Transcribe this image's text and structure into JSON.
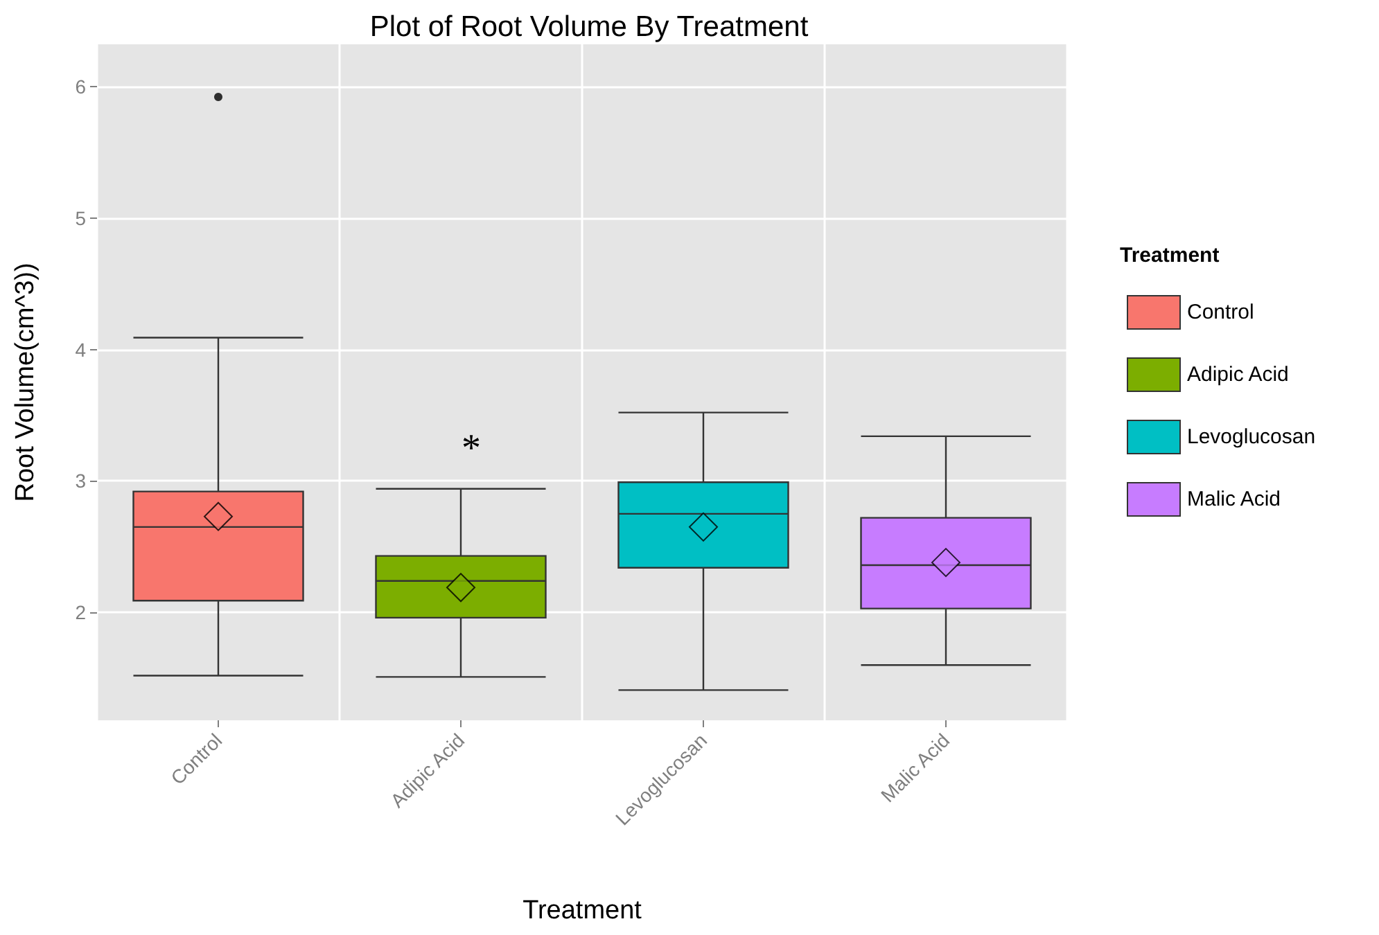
{
  "chart_data": {
    "type": "box",
    "title": "Plot of Root Volume By Treatment",
    "xlabel": "Treatment",
    "ylabel": "Root Volume(cm^3))",
    "legend_title": "Treatment",
    "legend": "right",
    "grid": true,
    "marker": "diamond",
    "categories": [
      "Control",
      "Adipic Acid",
      "Levoglucosan",
      "Malic Acid"
    ],
    "series": [
      {
        "name": "Control",
        "color": "#f8766d",
        "boxes": [
          {
            "low": 1.52,
            "q1": 2.09,
            "median": 2.65,
            "q3": 2.92,
            "high": 4.09,
            "mean": 2.73,
            "outliers": [
              5.92
            ]
          },
          null,
          null,
          null
        ]
      },
      {
        "name": "Adipic Acid",
        "color": "#7cae00",
        "boxes": [
          null,
          {
            "low": 1.51,
            "q1": 1.96,
            "median": 2.24,
            "q3": 2.43,
            "high": 2.94,
            "mean": 2.19
          },
          null,
          null
        ]
      },
      {
        "name": "Levoglucosan",
        "color": "#00bfc4",
        "boxes": [
          null,
          null,
          {
            "low": 1.41,
            "q1": 2.34,
            "median": 2.75,
            "q3": 2.99,
            "high": 3.52,
            "mean": 2.65
          },
          null
        ]
      },
      {
        "name": "Malic Acid",
        "color": "#c77cff",
        "boxes": [
          null,
          null,
          null,
          {
            "low": 1.6,
            "q1": 2.03,
            "median": 2.36,
            "q3": 2.72,
            "high": 3.34,
            "mean": 2.38
          }
        ]
      }
    ],
    "annotations": [
      "*"
    ],
    "ylim": [
      1.18,
      6.32
    ],
    "yticks": [
      2,
      3,
      4,
      5,
      6
    ]
  }
}
